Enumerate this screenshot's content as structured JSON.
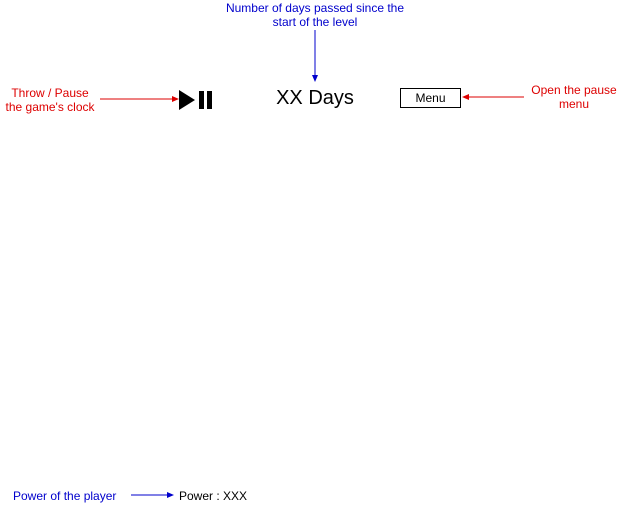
{
  "annotations": {
    "days": {
      "line1": "Number of days passed since the",
      "line2": "start of the level",
      "color": "#0000cc"
    },
    "clock": {
      "line1": "Throw / Pause",
      "line2": "the game's clock",
      "color": "#dd0000"
    },
    "menu": {
      "line1": "Open the pause",
      "line2": "menu",
      "color": "#dd0000"
    },
    "power": {
      "text": "Power of the player",
      "color": "#0000cc"
    }
  },
  "hud": {
    "play_icon": "play-icon",
    "pause_icon": "pause-icon",
    "days_label": "XX Days",
    "menu_label": "Menu",
    "power_label": "Power : XXX"
  }
}
